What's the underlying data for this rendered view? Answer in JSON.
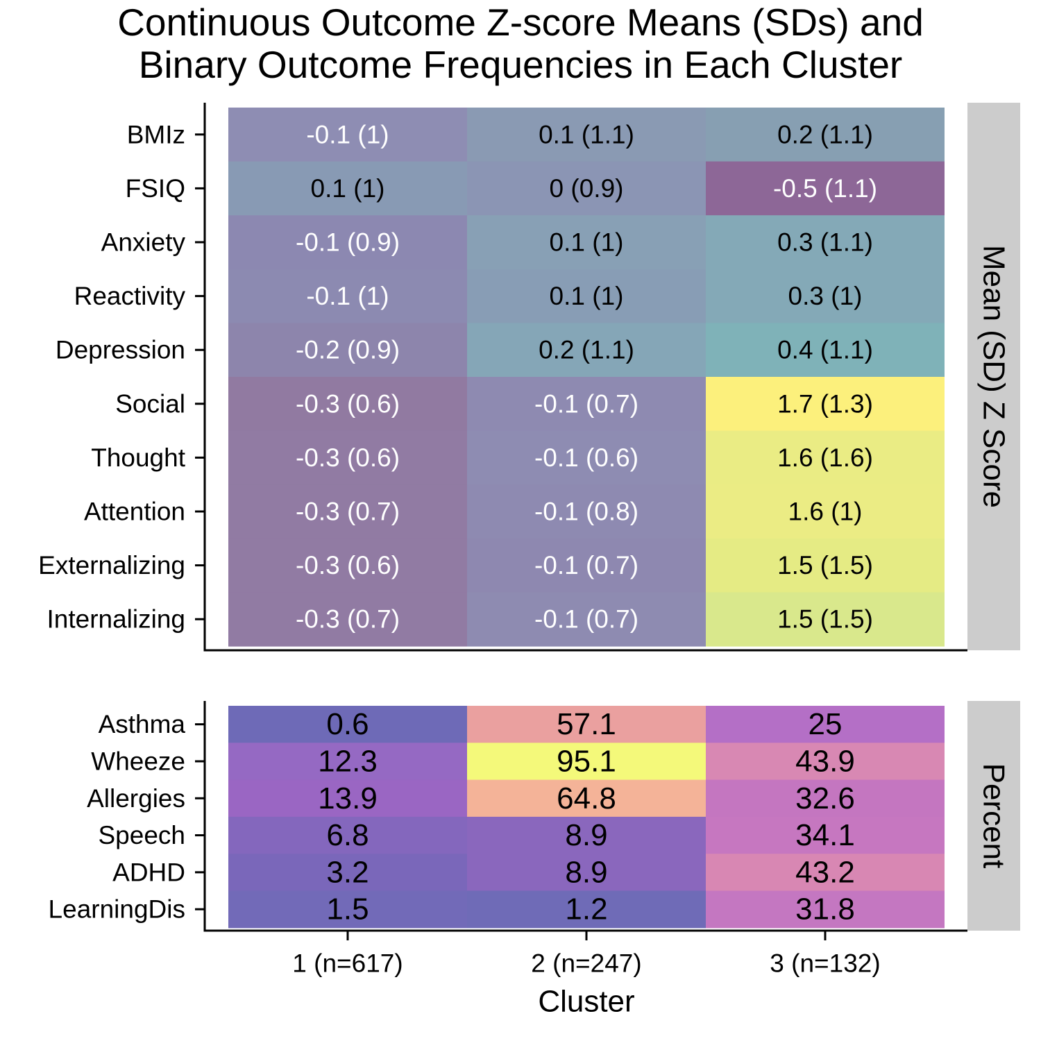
{
  "title_line1": "Continuous Outcome Z-score Means (SDs) and",
  "title_line2": "Binary Outcome Frequencies in Each Cluster",
  "chart_data": {
    "type": "heatmap",
    "xlabel": "Cluster",
    "categories": [
      "1 (n=617)",
      "2 (n=247)",
      "3 (n=132)"
    ],
    "panels": [
      {
        "strip": "Mean (SD) Z Score",
        "rows": [
          "BMIz",
          "FSIQ",
          "Anxiety",
          "Reactivity",
          "Depression",
          "Social",
          "Thought",
          "Attention",
          "Externalizing",
          "Internalizing"
        ],
        "means": [
          [
            -0.1,
            0.1,
            0.2
          ],
          [
            0.1,
            0,
            -0.5
          ],
          [
            -0.1,
            0.1,
            0.3
          ],
          [
            -0.1,
            0.1,
            0.3
          ],
          [
            -0.2,
            0.2,
            0.4
          ],
          [
            -0.3,
            -0.1,
            1.7
          ],
          [
            -0.3,
            -0.1,
            1.6
          ],
          [
            -0.3,
            -0.1,
            1.6
          ],
          [
            -0.3,
            -0.1,
            1.5
          ],
          [
            -0.3,
            -0.1,
            1.5
          ]
        ],
        "labels": [
          [
            "-0.1 (1)",
            "0.1 (1.1)",
            "0.2 (1.1)"
          ],
          [
            "0.1 (1)",
            "0 (0.9)",
            "-0.5 (1.1)"
          ],
          [
            "-0.1 (0.9)",
            "0.1 (1)",
            "0.3 (1.1)"
          ],
          [
            "-0.1 (1)",
            "0.1 (1)",
            "0.3 (1)"
          ],
          [
            "-0.2 (0.9)",
            "0.2 (1.1)",
            "0.4 (1.1)"
          ],
          [
            "-0.3 (0.6)",
            "-0.1 (0.7)",
            "1.7 (1.3)"
          ],
          [
            "-0.3 (0.6)",
            "-0.1 (0.6)",
            "1.6 (1.6)"
          ],
          [
            "-0.3 (0.7)",
            "-0.1 (0.8)",
            "1.6 (1)"
          ],
          [
            "-0.3 (0.6)",
            "-0.1 (0.7)",
            "1.5 (1.5)"
          ],
          [
            "-0.3 (0.7)",
            "-0.1 (0.7)",
            "1.5 (1.5)"
          ]
        ],
        "colors": [
          [
            "#8e8db3",
            "#8a9ab3",
            "#879fb2"
          ],
          [
            "#889ab4",
            "#8b95b4",
            "#8d6797"
          ],
          [
            "#8c88b1",
            "#88a0b5",
            "#84a9b7"
          ],
          [
            "#8c8ab1",
            "#889db5",
            "#84a9b7"
          ],
          [
            "#8d85ac",
            "#85a6b7",
            "#7fb2b8"
          ],
          [
            "#917aa1",
            "#8e8ab1",
            "#fcf07c"
          ],
          [
            "#917ba3",
            "#8e8cb2",
            "#eaec84"
          ],
          [
            "#917ba3",
            "#8e8ab1",
            "#ebec84"
          ],
          [
            "#917ba3",
            "#8e88b0",
            "#e5eb84"
          ],
          [
            "#917ba3",
            "#8e8bb1",
            "#d9e88c"
          ]
        ],
        "text_colors": [
          [
            "#ffffff",
            "#000000",
            "#000000"
          ],
          [
            "#000000",
            "#000000",
            "#ffffff"
          ],
          [
            "#ffffff",
            "#000000",
            "#000000"
          ],
          [
            "#ffffff",
            "#000000",
            "#000000"
          ],
          [
            "#ffffff",
            "#000000",
            "#000000"
          ],
          [
            "#ffffff",
            "#ffffff",
            "#000000"
          ],
          [
            "#ffffff",
            "#ffffff",
            "#000000"
          ],
          [
            "#ffffff",
            "#ffffff",
            "#000000"
          ],
          [
            "#ffffff",
            "#ffffff",
            "#000000"
          ],
          [
            "#ffffff",
            "#ffffff",
            "#000000"
          ]
        ]
      },
      {
        "strip": "Percent",
        "rows": [
          "Asthma",
          "Wheeze",
          "Allergies",
          "Speech",
          "ADHD",
          "LearningDis"
        ],
        "values": [
          [
            0.6,
            57.1,
            25
          ],
          [
            12.3,
            95.1,
            43.9
          ],
          [
            13.9,
            64.8,
            32.6
          ],
          [
            6.8,
            8.9,
            34.1
          ],
          [
            3.2,
            8.9,
            43.2
          ],
          [
            1.5,
            1.2,
            31.8
          ]
        ],
        "labels": [
          [
            "0.6",
            "57.1",
            "25"
          ],
          [
            "12.3",
            "95.1",
            "43.9"
          ],
          [
            "13.9",
            "64.8",
            "32.6"
          ],
          [
            "6.8",
            "8.9",
            "34.1"
          ],
          [
            "3.2",
            "8.9",
            "43.2"
          ],
          [
            "1.5",
            "1.2",
            "31.8"
          ]
        ],
        "colors": [
          [
            "#6e6ab7",
            "#eaa09f",
            "#b46fc6"
          ],
          [
            "#9569c3",
            "#f4f97a",
            "#d888b3"
          ],
          [
            "#9a66c3",
            "#f4b398",
            "#c476c0"
          ],
          [
            "#8467bd",
            "#8a67bd",
            "#c677c0"
          ],
          [
            "#7a67ba",
            "#8a67bd",
            "#d887b3"
          ],
          [
            "#726ab8",
            "#6f6bb7",
            "#c477c1"
          ]
        ],
        "text_colors": [
          [
            "#000000",
            "#000000",
            "#000000"
          ],
          [
            "#000000",
            "#000000",
            "#000000"
          ],
          [
            "#000000",
            "#000000",
            "#000000"
          ],
          [
            "#000000",
            "#000000",
            "#000000"
          ],
          [
            "#000000",
            "#000000",
            "#000000"
          ],
          [
            "#000000",
            "#000000",
            "#000000"
          ]
        ]
      }
    ]
  }
}
